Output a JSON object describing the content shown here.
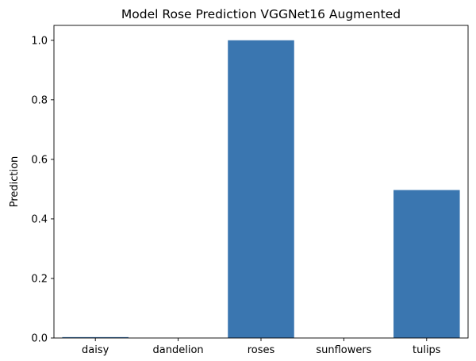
{
  "chart_data": {
    "type": "bar",
    "title": "Model Rose Prediction VGGNet16 Augmented",
    "xlabel": "",
    "ylabel": "Prediction",
    "categories": [
      "daisy",
      "dandelion",
      "roses",
      "sunflowers",
      "tulips"
    ],
    "values": [
      0.003,
      0.0,
      1.0,
      0.0,
      0.497
    ],
    "yticks": [
      "0.0",
      "0.2",
      "0.4",
      "0.6",
      "0.8",
      "1.0"
    ],
    "ylim": [
      0,
      1.05
    ],
    "grid": false,
    "legend": "none",
    "bar_color": "#3a76b0"
  }
}
